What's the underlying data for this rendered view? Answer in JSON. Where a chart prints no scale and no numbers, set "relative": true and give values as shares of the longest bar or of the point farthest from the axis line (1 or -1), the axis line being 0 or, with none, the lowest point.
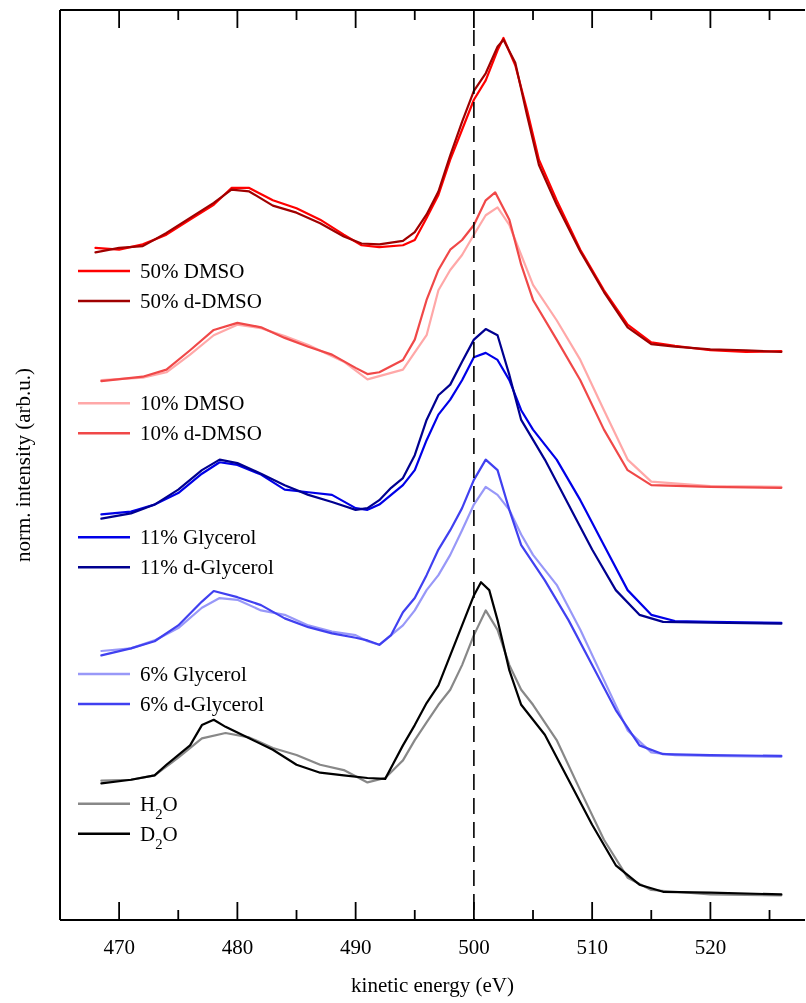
{
  "chart_data": {
    "type": "line",
    "relative": true,
    "xlabel": "kinetic energy (eV)",
    "ylabel": "norm. intensity (arb.u.)",
    "xlim": [
      465,
      528
    ],
    "xticks": [
      470,
      {
        "value": 475,
        "label": null
      },
      480,
      {
        "value": 485,
        "label": null
      },
      490,
      {
        "value": 495,
        "label": null
      },
      500,
      {
        "value": 505,
        "label": null
      },
      510,
      {
        "value": 515,
        "label": null
      },
      520,
      {
        "value": 525,
        "label": null
      }
    ],
    "legend": "left",
    "line_style": "solid",
    "marker": "none",
    "ref_lines": [
      {
        "axis": "x",
        "value": 500,
        "color": "#000000",
        "line_style": "dashed"
      }
    ],
    "series": [
      {
        "name": "50% DMSO",
        "color": "#ff0000",
        "x": [
          468,
          470,
          472,
          474,
          476,
          478,
          479.5,
          481,
          483,
          485,
          487,
          489,
          490.5,
          492,
          494,
          495,
          496,
          497,
          498,
          499,
          500,
          501,
          502,
          502.5,
          503.5,
          504.5,
          505.5,
          507,
          509,
          511,
          513,
          515,
          517,
          520,
          523,
          526
        ],
        "values": [
          0.762,
          0.76,
          0.766,
          0.777,
          0.794,
          0.811,
          0.83,
          0.83,
          0.816,
          0.807,
          0.794,
          0.777,
          0.765,
          0.763,
          0.765,
          0.771,
          0.796,
          0.822,
          0.862,
          0.896,
          0.93,
          0.952,
          0.986,
          1.0,
          0.969,
          0.918,
          0.862,
          0.816,
          0.76,
          0.714,
          0.675,
          0.655,
          0.651,
          0.646,
          0.644,
          0.645
        ]
      },
      {
        "name": "50% d-DMSO",
        "color": "#a00000",
        "x": [
          468,
          470,
          472,
          474,
          476,
          478,
          479.5,
          481,
          483,
          485,
          487,
          489,
          490.5,
          492,
          494,
          495,
          496,
          497,
          498,
          499,
          500,
          501,
          502,
          502.5,
          503.5,
          504.5,
          505.5,
          507,
          509,
          511,
          513,
          515,
          517,
          520,
          523,
          526
        ],
        "values": [
          0.757,
          0.762,
          0.764,
          0.779,
          0.796,
          0.813,
          0.828,
          0.826,
          0.81,
          0.802,
          0.79,
          0.775,
          0.767,
          0.766,
          0.77,
          0.78,
          0.8,
          0.826,
          0.867,
          0.905,
          0.94,
          0.96,
          0.99,
          0.998,
          0.972,
          0.912,
          0.856,
          0.811,
          0.758,
          0.712,
          0.672,
          0.653,
          0.65,
          0.647,
          0.646,
          0.644
        ]
      },
      {
        "name": "10% DMSO",
        "color": "#ffa8a8",
        "x": [
          468.5,
          472,
          474,
          476,
          478,
          480,
          482,
          484,
          486,
          489,
          491,
          494,
          496,
          497,
          498,
          499,
          500,
          501,
          502,
          503,
          504,
          505,
          507,
          509,
          511,
          513,
          515,
          520,
          526
        ],
        "values": [
          0.612,
          0.615,
          0.621,
          0.641,
          0.663,
          0.675,
          0.671,
          0.662,
          0.652,
          0.633,
          0.613,
          0.624,
          0.663,
          0.714,
          0.737,
          0.754,
          0.777,
          0.799,
          0.808,
          0.788,
          0.754,
          0.72,
          0.68,
          0.635,
          0.578,
          0.522,
          0.497,
          0.492,
          0.491
        ]
      },
      {
        "name": "10% d-DMSO",
        "color": "#f04848",
        "x": [
          468.5,
          472,
          474,
          476,
          478,
          480,
          482,
          484,
          486,
          488,
          490,
          491,
          492,
          494,
          495,
          496,
          497,
          498,
          499,
          500,
          501,
          501.8,
          503,
          504,
          505,
          507,
          509,
          511,
          513,
          515,
          520,
          526
        ],
        "values": [
          0.611,
          0.616,
          0.624,
          0.646,
          0.669,
          0.677,
          0.672,
          0.66,
          0.65,
          0.641,
          0.626,
          0.619,
          0.621,
          0.635,
          0.658,
          0.703,
          0.737,
          0.76,
          0.771,
          0.788,
          0.816,
          0.825,
          0.794,
          0.743,
          0.703,
          0.658,
          0.612,
          0.556,
          0.51,
          0.493,
          0.491,
          0.49
        ]
      },
      {
        "name": "11% Glycerol",
        "color": "#0000e8",
        "x": [
          468.5,
          471,
          473,
          475,
          477,
          478.5,
          480,
          482,
          484,
          486,
          488,
          490,
          491,
          492,
          494,
          495,
          496,
          497,
          498,
          499,
          500,
          501,
          502,
          503,
          504,
          505,
          507,
          509,
          511,
          513,
          515,
          517,
          520,
          526
        ],
        "values": [
          0.46,
          0.463,
          0.471,
          0.484,
          0.506,
          0.519,
          0.516,
          0.505,
          0.488,
          0.485,
          0.482,
          0.467,
          0.465,
          0.471,
          0.493,
          0.51,
          0.544,
          0.573,
          0.59,
          0.612,
          0.638,
          0.643,
          0.635,
          0.612,
          0.578,
          0.556,
          0.522,
          0.476,
          0.425,
          0.374,
          0.346,
          0.339,
          0.338,
          0.337
        ]
      },
      {
        "name": "11% d-Glycerol",
        "color": "#000090",
        "x": [
          468.5,
          471,
          473,
          475,
          477,
          478.5,
          480,
          482,
          484,
          486,
          488,
          490,
          491,
          492,
          493,
          494,
          495,
          496,
          497,
          498,
          499,
          500,
          501,
          502,
          503,
          504,
          506,
          508,
          510,
          512,
          514,
          516,
          520,
          526
        ],
        "values": [
          0.455,
          0.461,
          0.471,
          0.488,
          0.51,
          0.522,
          0.518,
          0.506,
          0.493,
          0.482,
          0.474,
          0.465,
          0.467,
          0.476,
          0.49,
          0.501,
          0.527,
          0.567,
          0.595,
          0.607,
          0.633,
          0.658,
          0.67,
          0.663,
          0.618,
          0.567,
          0.522,
          0.471,
          0.42,
          0.374,
          0.346,
          0.338,
          0.337,
          0.336
        ]
      },
      {
        "name": "6% Glycerol",
        "color": "#9898f8",
        "x": [
          468.5,
          471,
          473,
          475,
          477,
          478.5,
          480,
          482,
          484,
          486,
          488,
          490,
          491,
          492,
          494,
          495,
          496,
          497,
          498,
          499,
          500,
          501,
          502,
          503,
          504,
          505,
          507,
          509,
          511,
          513,
          515,
          517,
          520,
          526
        ],
        "values": [
          0.305,
          0.308,
          0.317,
          0.331,
          0.354,
          0.365,
          0.363,
          0.351,
          0.346,
          0.334,
          0.327,
          0.323,
          0.316,
          0.312,
          0.334,
          0.351,
          0.374,
          0.391,
          0.414,
          0.442,
          0.471,
          0.491,
          0.482,
          0.465,
          0.437,
          0.414,
          0.38,
          0.329,
          0.272,
          0.215,
          0.19,
          0.187,
          0.186,
          0.185
        ]
      },
      {
        "name": "6% d-Glycerol",
        "color": "#4040f0",
        "x": [
          468.5,
          471,
          473,
          475,
          477,
          478,
          480,
          482,
          484,
          486,
          488,
          490,
          491,
          492,
          493,
          494,
          495,
          496,
          497,
          498,
          499,
          500,
          501,
          502,
          503,
          504,
          506,
          508,
          510,
          512,
          514,
          516,
          520,
          526
        ],
        "values": [
          0.3,
          0.308,
          0.316,
          0.334,
          0.361,
          0.373,
          0.366,
          0.357,
          0.342,
          0.332,
          0.325,
          0.32,
          0.317,
          0.312,
          0.323,
          0.349,
          0.365,
          0.391,
          0.42,
          0.442,
          0.467,
          0.499,
          0.522,
          0.51,
          0.465,
          0.425,
          0.385,
          0.34,
          0.289,
          0.238,
          0.198,
          0.188,
          0.187,
          0.186
        ]
      },
      {
        "name": "H$_{2}$O",
        "color": "#888888",
        "x": [
          468.5,
          471,
          473,
          475,
          477,
          479,
          481,
          483,
          485,
          487,
          489,
          491,
          492.5,
          494,
          495,
          496,
          497,
          498,
          499,
          500,
          501,
          502,
          503,
          504,
          505,
          507,
          509,
          511,
          513,
          515,
          520,
          526
        ],
        "values": [
          0.158,
          0.159,
          0.164,
          0.184,
          0.206,
          0.212,
          0.207,
          0.195,
          0.187,
          0.176,
          0.17,
          0.156,
          0.161,
          0.181,
          0.204,
          0.224,
          0.244,
          0.261,
          0.289,
          0.323,
          0.351,
          0.329,
          0.289,
          0.261,
          0.244,
          0.204,
          0.147,
          0.091,
          0.048,
          0.034,
          0.029,
          0.028
        ]
      },
      {
        "name": "D$_{2}$O",
        "color": "#000000",
        "x": [
          468.5,
          471,
          473,
          474,
          476,
          477,
          478,
          479,
          481,
          483,
          485,
          487,
          489,
          491,
          492.5,
          494,
          495,
          496,
          497,
          498,
          499,
          500,
          500.6,
          501.3,
          502,
          503,
          504,
          506,
          508,
          510,
          512,
          514,
          516,
          520,
          526
        ],
        "values": [
          0.155,
          0.159,
          0.164,
          0.176,
          0.198,
          0.221,
          0.227,
          0.219,
          0.206,
          0.193,
          0.176,
          0.167,
          0.164,
          0.161,
          0.16,
          0.198,
          0.221,
          0.246,
          0.266,
          0.3,
          0.334,
          0.368,
          0.383,
          0.374,
          0.34,
          0.283,
          0.244,
          0.21,
          0.159,
          0.108,
          0.062,
          0.04,
          0.032,
          0.031,
          0.029
        ]
      }
    ]
  }
}
